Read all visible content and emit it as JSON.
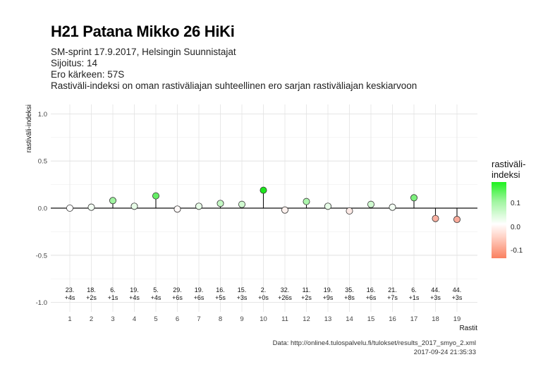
{
  "title": "H21 Patana Mikko 26 HiKi",
  "subtitle_lines": [
    "SM-sprint 17.9.2017, Helsingin Suunnistajat",
    "Sijoitus: 14",
    "Ero kärkeen: 57S",
    "Rastiväli-indeksi on oman rastiväliajan suhteellinen ero sarjan rastiväliajan keskiarvoon"
  ],
  "legend": {
    "title_lines": [
      "rastiväli-",
      "indeksi"
    ],
    "labels": [
      "0.1",
      "0.0",
      "-0.1"
    ]
  },
  "caption_lines": [
    "Data: http://online4.tulospalvelu.fi/tulokset/results_2017_smyo_2.xml",
    "2017-09-24 21:35:33"
  ],
  "chart_data": {
    "type": "lollipop",
    "xlabel": "Rastit",
    "ylabel": "rastiväli-indeksi",
    "ylim": [
      -1.0,
      1.0
    ],
    "yticks": [
      "1.0",
      "0.5",
      "0.0",
      "-0.5",
      "-1.0"
    ],
    "grid": true,
    "legend_position": "right",
    "categories": [
      "1",
      "2",
      "3",
      "4",
      "5",
      "6",
      "7",
      "8",
      "9",
      "10",
      "11",
      "12",
      "13",
      "14",
      "15",
      "16",
      "17",
      "18",
      "19"
    ],
    "values": [
      0.0,
      0.01,
      0.08,
      0.02,
      0.13,
      -0.01,
      0.02,
      0.05,
      0.04,
      0.19,
      -0.02,
      0.07,
      0.02,
      -0.03,
      0.04,
      0.01,
      0.11,
      -0.11,
      -0.12
    ],
    "annotations": [
      [
        "23.",
        "+4s"
      ],
      [
        "18.",
        "+2s"
      ],
      [
        "6.",
        "+1s"
      ],
      [
        "19.",
        "+4s"
      ],
      [
        "5.",
        "+4s"
      ],
      [
        "29.",
        "+6s"
      ],
      [
        "19.",
        "+6s"
      ],
      [
        "16.",
        "+5s"
      ],
      [
        "15.",
        "+3s"
      ],
      [
        "2.",
        "+0s"
      ],
      [
        "32.",
        "+26s"
      ],
      [
        "11.",
        "+2s"
      ],
      [
        "19.",
        "+9s"
      ],
      [
        "35.",
        "+8s"
      ],
      [
        "16.",
        "+6s"
      ],
      [
        "21.",
        "+7s"
      ],
      [
        "6.",
        "+1s"
      ],
      [
        "44.",
        "+3s"
      ],
      [
        "44.",
        "+3s"
      ]
    ]
  }
}
